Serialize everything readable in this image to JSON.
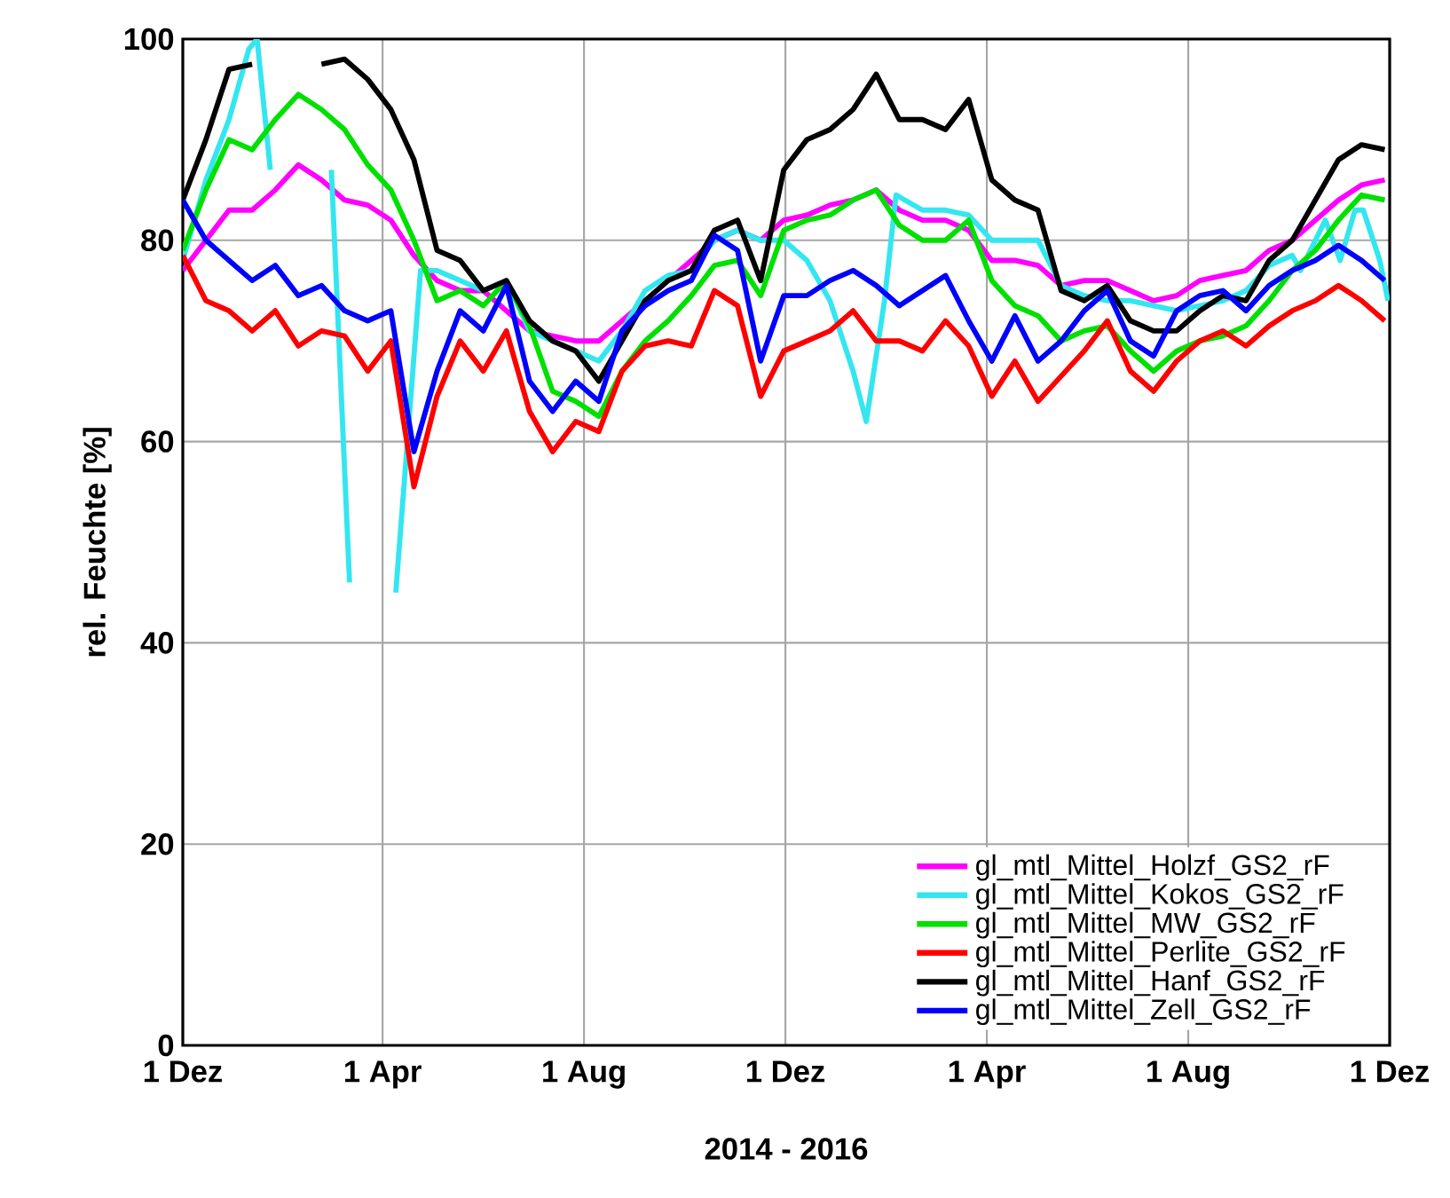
{
  "chart_data": {
    "type": "line",
    "xlabel": "2014 - 2016",
    "ylabel": "rel. Feuchte [%]",
    "x": [
      "2014-12-01",
      "2014-12-15",
      "2014-12-29",
      "2015-01-12",
      "2015-01-26",
      "2015-02-09",
      "2015-02-23",
      "2015-03-09",
      "2015-03-23",
      "2015-04-06",
      "2015-04-20",
      "2015-05-04",
      "2015-05-18",
      "2015-06-01",
      "2015-06-15",
      "2015-06-29",
      "2015-07-13",
      "2015-07-27",
      "2015-08-10",
      "2015-08-24",
      "2015-09-07",
      "2015-09-21",
      "2015-10-05",
      "2015-10-19",
      "2015-11-02",
      "2015-11-16",
      "2015-11-30",
      "2015-12-14",
      "2015-12-28",
      "2016-01-11",
      "2016-01-25",
      "2016-02-08",
      "2016-02-22",
      "2016-03-07",
      "2016-03-21",
      "2016-04-04",
      "2016-04-18",
      "2016-05-02",
      "2016-05-16",
      "2016-05-30",
      "2016-06-13",
      "2016-06-27",
      "2016-07-11",
      "2016-07-25",
      "2016-08-08",
      "2016-08-22",
      "2016-09-05",
      "2016-09-19",
      "2016-10-03",
      "2016-10-17",
      "2016-10-31",
      "2016-11-14",
      "2016-11-28"
    ],
    "xlim": [
      "2014-12-01",
      "2016-12-01"
    ],
    "xticks": [
      {
        "value": "2014-12-01",
        "label": "1 Dez"
      },
      {
        "value": "2015-04-01",
        "label": "1 Apr"
      },
      {
        "value": "2015-08-01",
        "label": "1 Aug"
      },
      {
        "value": "2015-12-01",
        "label": "1 Dez"
      },
      {
        "value": "2016-04-01",
        "label": "1 Apr"
      },
      {
        "value": "2016-08-01",
        "label": "1 Aug"
      },
      {
        "value": "2016-12-01",
        "label": "1 Dez"
      }
    ],
    "ylim": [
      0,
      100
    ],
    "yticks": [
      0,
      20,
      40,
      60,
      80,
      100
    ],
    "grid": true,
    "legend": "bottom right",
    "series": [
      {
        "name": "gl_mtl_Mittel_Holzf_GS2_rF",
        "color": "#ff00ff",
        "values": [
          77,
          80,
          83,
          83,
          85,
          87.5,
          86,
          84,
          83.5,
          82,
          78.5,
          76,
          75,
          75,
          73,
          71,
          70.5,
          70,
          70,
          72,
          74,
          76,
          78,
          80,
          81,
          80,
          82,
          82.5,
          83.5,
          84,
          85,
          83,
          82,
          82,
          81,
          78,
          78,
          77.5,
          75.5,
          76,
          76,
          75,
          74,
          74.5,
          76,
          76.5,
          77,
          79,
          80,
          82,
          84,
          85.5,
          86
        ]
      },
      {
        "name": "gl_mtl_Mittel_Kokos_GS2_rF",
        "color": "#33e6f0",
        "x": [
          "2014-12-01",
          "2014-12-15",
          "2014-12-29",
          "2015-01-10",
          "2015-01-15",
          "2015-01-23",
          "2015-01-30",
          "2015-03-01",
          "2015-03-12",
          "2015-03-19",
          "2015-04-09",
          "2015-04-24",
          "2015-05-04",
          "2015-05-18",
          "2015-06-01",
          "2015-06-15",
          "2015-06-29",
          "2015-07-13",
          "2015-07-27",
          "2015-08-10",
          "2015-08-24",
          "2015-09-07",
          "2015-09-21",
          "2015-10-05",
          "2015-10-19",
          "2015-11-02",
          "2015-11-16",
          "2015-11-30",
          "2015-12-14",
          "2015-12-28",
          "2016-01-11",
          "2016-01-19",
          "2016-01-30",
          "2016-02-06",
          "2016-02-22",
          "2016-03-07",
          "2016-03-21",
          "2016-04-04",
          "2016-04-18",
          "2016-05-02",
          "2016-05-16",
          "2016-05-30",
          "2016-06-13",
          "2016-06-27",
          "2016-07-11",
          "2016-07-25",
          "2016-08-08",
          "2016-08-22",
          "2016-09-05",
          "2016-09-19",
          "2016-10-03",
          "2016-10-08",
          "2016-10-23",
          "2016-11-01",
          "2016-11-10",
          "2016-11-15",
          "2016-11-25",
          "2016-11-30"
        ],
        "values": [
          78,
          86,
          92,
          99,
          100,
          87,
          null,
          87,
          46,
          null,
          45,
          77,
          77,
          76,
          75,
          76,
          71,
          70,
          69,
          68,
          71,
          75,
          76.5,
          77,
          80,
          81,
          80,
          80,
          78,
          74,
          67,
          62,
          74,
          84.5,
          83,
          83,
          82.5,
          80,
          80,
          80,
          75.5,
          74.5,
          74,
          74,
          73.5,
          73,
          73.5,
          74,
          75,
          77.5,
          78.5,
          77,
          82,
          78,
          83,
          83,
          78,
          74
        ]
      },
      {
        "name": "gl_mtl_Mittel_MW_GS2_rF",
        "color": "#00e000",
        "values": [
          79,
          85,
          90,
          89,
          92,
          94.5,
          93,
          91,
          87.5,
          85,
          80,
          74,
          75,
          73.5,
          76,
          71.5,
          65,
          64,
          62.5,
          67,
          70,
          72,
          74.5,
          77.5,
          78,
          74.5,
          81,
          82,
          82.5,
          84,
          85,
          81.5,
          80,
          80,
          82,
          76,
          73.5,
          72.5,
          70,
          71,
          71.5,
          69,
          67,
          69,
          70,
          70.5,
          71.5,
          74,
          77,
          79,
          82,
          84.5,
          84
        ]
      },
      {
        "name": "gl_mtl_Mittel_Perlite_GS2_rF",
        "color": "#ff0000",
        "values": [
          78.5,
          74,
          73,
          71,
          73,
          69.5,
          71,
          70.5,
          67,
          70,
          55.5,
          64.5,
          70,
          67,
          71,
          63,
          59,
          62,
          61,
          67,
          69.5,
          70,
          69.5,
          75,
          73.5,
          64.5,
          69,
          70,
          71,
          73,
          70,
          70,
          69,
          72,
          69.5,
          64.5,
          68,
          64,
          66.5,
          69,
          72,
          67,
          65,
          68,
          70,
          71,
          69.5,
          71.5,
          73,
          74,
          75.5,
          74,
          72
        ]
      },
      {
        "name": "gl_mtl_Mittel_Hanf_GS2_rF",
        "color": "#000000",
        "values": [
          84,
          90,
          97,
          97.5,
          null,
          null,
          97.5,
          98,
          96,
          93,
          88,
          79,
          78,
          75,
          76,
          72,
          70,
          69,
          66,
          70,
          74,
          76,
          77,
          81,
          82,
          76,
          87,
          90,
          91,
          93,
          96.5,
          92,
          92,
          91,
          94,
          86,
          84,
          83,
          75,
          74,
          75.5,
          72,
          71,
          71,
          73,
          74.5,
          74,
          78,
          80,
          84,
          88,
          89.5,
          89
        ]
      },
      {
        "name": "gl_mtl_Mittel_Zell_GS2_rF",
        "color": "#0000ff",
        "values": [
          84,
          80,
          78,
          76,
          77.5,
          74.5,
          75.5,
          73,
          72,
          73,
          59,
          67,
          73,
          71,
          75.5,
          66,
          63,
          66,
          64,
          71,
          73.5,
          75,
          76,
          80.5,
          79,
          68,
          74.5,
          74.5,
          76,
          77,
          75.5,
          73.5,
          75,
          76.5,
          72,
          68,
          72.5,
          68,
          70,
          73,
          75,
          70,
          68.5,
          73,
          74.5,
          75,
          73,
          75.5,
          77,
          78,
          79.5,
          78,
          76
        ]
      }
    ]
  }
}
